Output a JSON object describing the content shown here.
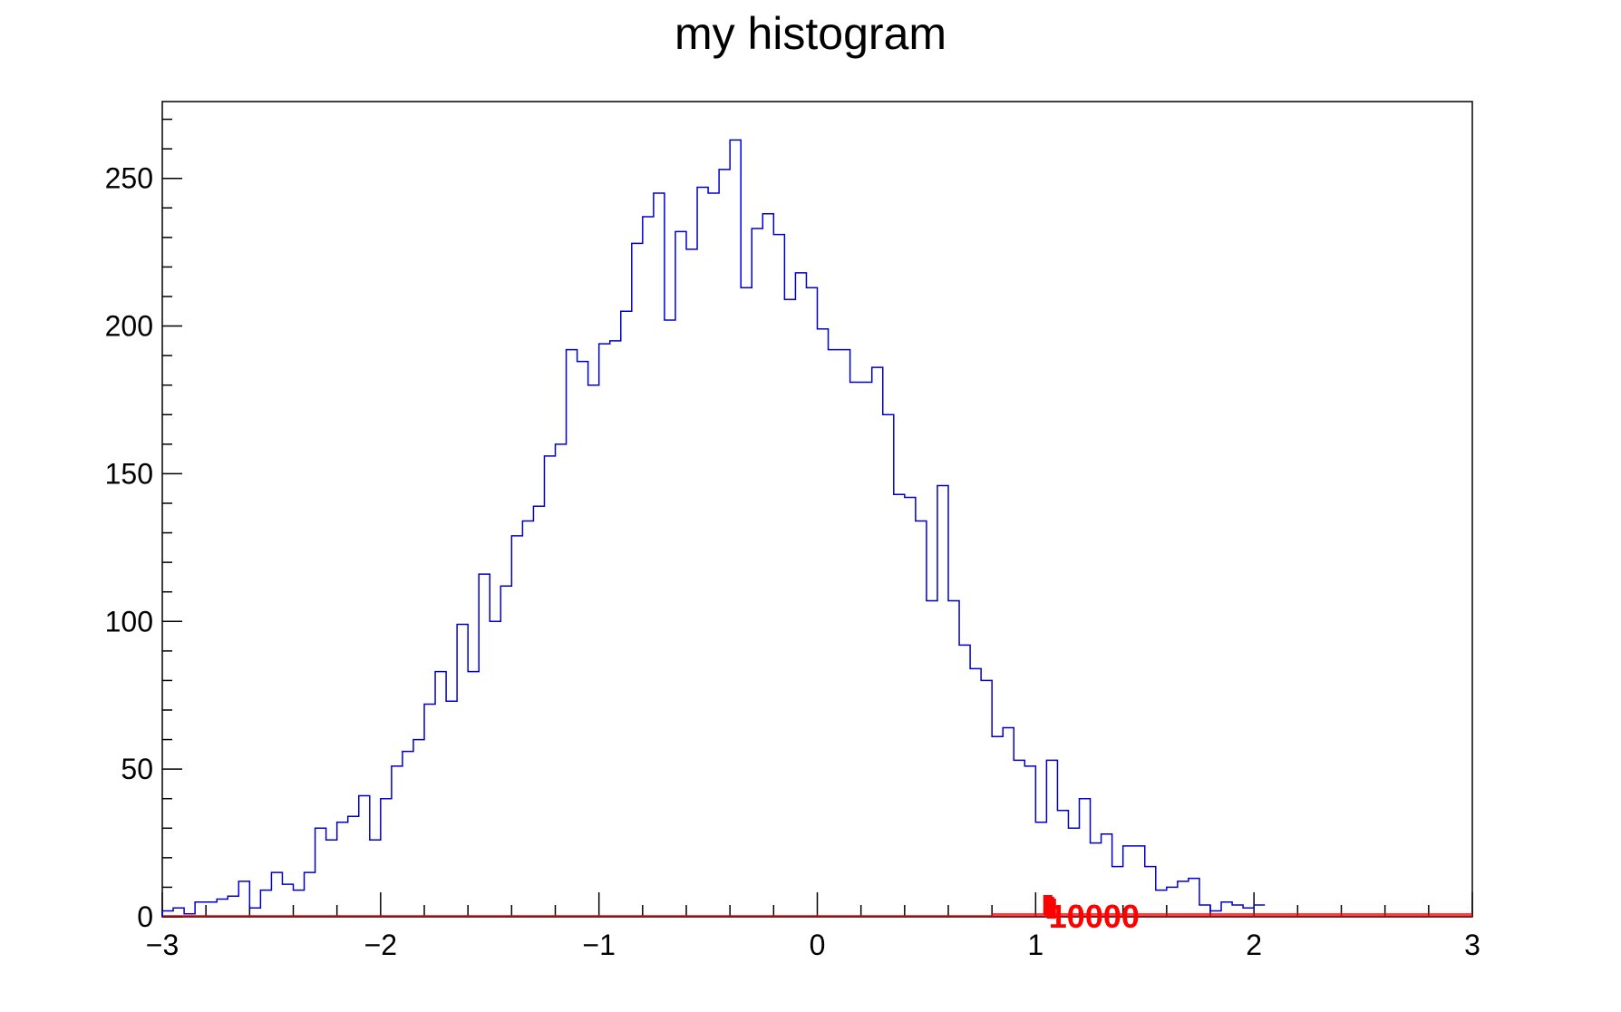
{
  "chart_data": {
    "type": "histogram",
    "title": "my histogram",
    "xlabel": "",
    "ylabel": "",
    "xlim": [
      -3,
      3
    ],
    "ylim": [
      0,
      276
    ],
    "bins": 120,
    "x_ticks": [
      "−3",
      "−2",
      "−1",
      "0",
      "1",
      "2",
      "3"
    ],
    "y_ticks": [
      "0",
      "50",
      "100",
      "150",
      "200",
      "250"
    ],
    "line_color": "#0000cc",
    "overlay_color": "#ff0000",
    "overlay_label": "10000",
    "overlay_range": [
      1.0,
      3.0
    ],
    "overlay_label_x": 1.06,
    "values": [
      2,
      3,
      1,
      5,
      5,
      6,
      7,
      12,
      3,
      9,
      15,
      11,
      9,
      15,
      30,
      26,
      32,
      34,
      41,
      26,
      40,
      51,
      56,
      60,
      72,
      83,
      73,
      99,
      83,
      116,
      100,
      112,
      129,
      134,
      139,
      156,
      160,
      192,
      188,
      180,
      194,
      195,
      205,
      228,
      237,
      245,
      202,
      232,
      226,
      247,
      245,
      253,
      263,
      213,
      233,
      238,
      231,
      209,
      218,
      213,
      199,
      192,
      192,
      181,
      181,
      186,
      170,
      143,
      142,
      134,
      107,
      146,
      107,
      92,
      84,
      80,
      61,
      64,
      53,
      51,
      32,
      53,
      36,
      30,
      40,
      25,
      28,
      17,
      24,
      24,
      17,
      9,
      10,
      12,
      13,
      4,
      2,
      5,
      4,
      3,
      4
    ]
  }
}
